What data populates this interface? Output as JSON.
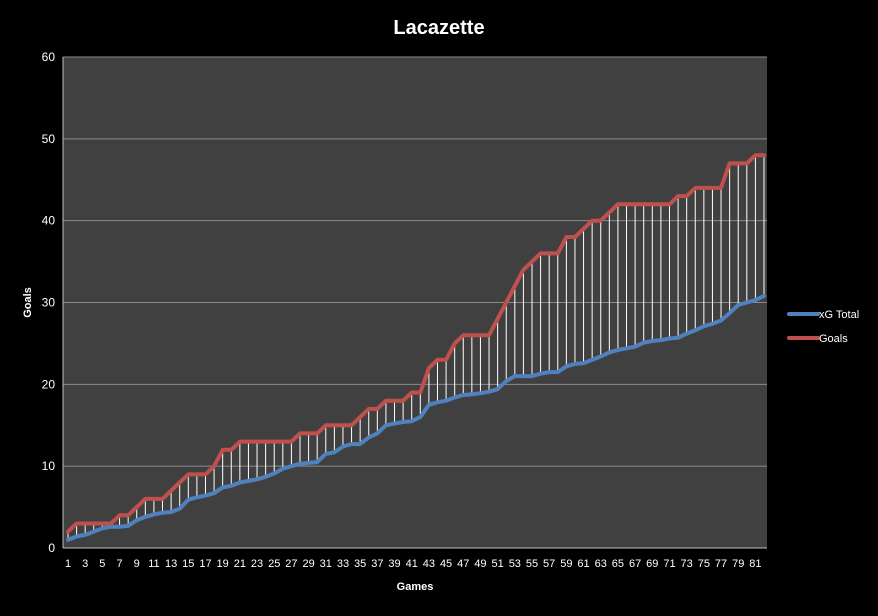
{
  "chart_data": {
    "type": "line",
    "title": "Lacazette",
    "xlabel": "Games",
    "ylabel": "Goals",
    "ylim": [
      0,
      60
    ],
    "yticks": [
      0,
      10,
      20,
      30,
      40,
      50,
      60
    ],
    "xlim": [
      1,
      82
    ],
    "xtick_labels": [
      "1",
      "3",
      "5",
      "7",
      "9",
      "11",
      "13",
      "15",
      "17",
      "19",
      "21",
      "23",
      "25",
      "27",
      "29",
      "31",
      "33",
      "35",
      "37",
      "39",
      "41",
      "43",
      "45",
      "47",
      "49",
      "51",
      "53",
      "55",
      "57",
      "59",
      "61",
      "63",
      "65",
      "67",
      "69",
      "71",
      "73",
      "75",
      "77",
      "79",
      "81"
    ],
    "grid": true,
    "legend_position": "right",
    "drop_lines": true,
    "x": [
      1,
      2,
      3,
      4,
      5,
      6,
      7,
      8,
      9,
      10,
      11,
      12,
      13,
      14,
      15,
      16,
      17,
      18,
      19,
      20,
      21,
      22,
      23,
      24,
      25,
      26,
      27,
      28,
      29,
      30,
      31,
      32,
      33,
      34,
      35,
      36,
      37,
      38,
      39,
      40,
      41,
      42,
      43,
      44,
      45,
      46,
      47,
      48,
      49,
      50,
      51,
      52,
      53,
      54,
      55,
      56,
      57,
      58,
      59,
      60,
      61,
      62,
      63,
      64,
      65,
      66,
      67,
      68,
      69,
      70,
      71,
      72,
      73,
      74,
      75,
      76,
      77,
      78,
      79,
      80,
      81,
      82
    ],
    "series": [
      {
        "name": "xG Total",
        "color": "#4f81bd",
        "values": [
          1.0,
          1.4,
          1.6,
          2.0,
          2.4,
          2.6,
          2.6,
          2.7,
          3.4,
          3.8,
          4.1,
          4.3,
          4.4,
          4.8,
          5.9,
          6.2,
          6.4,
          6.7,
          7.4,
          7.6,
          8.0,
          8.2,
          8.4,
          8.7,
          9.1,
          9.7,
          10.0,
          10.3,
          10.4,
          10.5,
          11.5,
          11.7,
          12.4,
          12.7,
          12.7,
          13.5,
          14.0,
          15.0,
          15.2,
          15.4,
          15.5,
          16.0,
          17.5,
          17.8,
          18.0,
          18.4,
          18.7,
          18.8,
          18.9,
          19.1,
          19.4,
          20.4,
          21.0,
          21.0,
          21.0,
          21.3,
          21.5,
          21.5,
          22.2,
          22.5,
          22.6,
          23.0,
          23.4,
          23.9,
          24.2,
          24.4,
          24.6,
          25.1,
          25.3,
          25.4,
          25.6,
          25.7,
          26.2,
          26.6,
          27.1,
          27.4,
          27.8,
          28.7,
          29.7,
          30.0,
          30.3,
          30.8
        ]
      },
      {
        "name": "Goals",
        "color": "#c0504d",
        "values": [
          2,
          3,
          3,
          3,
          3,
          3,
          4,
          4,
          5,
          6,
          6,
          6,
          7,
          8,
          9,
          9,
          9,
          10,
          12,
          12,
          13,
          13,
          13,
          13,
          13,
          13,
          13,
          14,
          14,
          14,
          15,
          15,
          15,
          15,
          16,
          17,
          17,
          18,
          18,
          18,
          19,
          19,
          22,
          23,
          23,
          25,
          26,
          26,
          26,
          26,
          28,
          30,
          32,
          34,
          35,
          36,
          36,
          36,
          38,
          38,
          39,
          40,
          40,
          41,
          42,
          42,
          42,
          42,
          42,
          42,
          42,
          43,
          43,
          44,
          44,
          44,
          44,
          47,
          47,
          47,
          48,
          48
        ]
      }
    ]
  }
}
